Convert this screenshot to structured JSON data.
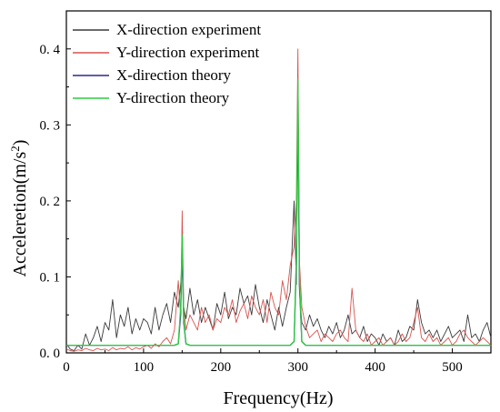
{
  "chart_data": {
    "type": "line",
    "title": "",
    "xlabel": "Frequency(Hz)",
    "ylabel": "Acceleretion(m/s",
    "ylabel_superscript": "2",
    "ylabel_suffix": ")",
    "xlim": [
      0,
      550
    ],
    "ylim": [
      0,
      0.45
    ],
    "x_ticks": [
      0,
      100,
      200,
      300,
      400,
      500
    ],
    "y_ticks": [
      0,
      0.1,
      0.2,
      0.3,
      0.4
    ],
    "y_tick_labels": [
      "0. 0",
      "0. 1",
      "0. 2",
      "0. 3",
      "0. 4"
    ],
    "grid": false,
    "legend_position": "top-left",
    "series": [
      {
        "name": "X-direction experiment",
        "color": "#3a3a3a",
        "x": [
          0,
          5,
          10,
          15,
          20,
          25,
          30,
          35,
          40,
          45,
          50,
          55,
          60,
          65,
          70,
          75,
          80,
          85,
          90,
          95,
          100,
          105,
          110,
          115,
          120,
          125,
          130,
          135,
          140,
          145,
          148,
          150,
          152,
          155,
          160,
          165,
          170,
          175,
          180,
          185,
          190,
          195,
          200,
          205,
          210,
          215,
          220,
          225,
          230,
          235,
          240,
          245,
          250,
          255,
          260,
          265,
          270,
          275,
          280,
          285,
          290,
          295,
          298,
          300,
          302,
          305,
          310,
          315,
          320,
          325,
          330,
          335,
          340,
          345,
          350,
          355,
          360,
          365,
          370,
          375,
          380,
          385,
          390,
          395,
          400,
          405,
          410,
          415,
          420,
          425,
          430,
          435,
          440,
          445,
          450,
          455,
          460,
          465,
          470,
          475,
          480,
          485,
          490,
          495,
          500,
          505,
          510,
          515,
          520,
          525,
          530,
          535,
          540,
          545,
          550
        ],
        "values": [
          0.012,
          0.005,
          0.003,
          0.01,
          0.005,
          0.025,
          0.01,
          0.02,
          0.035,
          0.015,
          0.04,
          0.03,
          0.07,
          0.02,
          0.05,
          0.035,
          0.06,
          0.025,
          0.045,
          0.03,
          0.045,
          0.04,
          0.025,
          0.06,
          0.03,
          0.05,
          0.065,
          0.04,
          0.08,
          0.06,
          0.09,
          0.12,
          0.06,
          0.045,
          0.085,
          0.05,
          0.07,
          0.04,
          0.06,
          0.045,
          0.03,
          0.065,
          0.05,
          0.08,
          0.045,
          0.06,
          0.05,
          0.085,
          0.065,
          0.075,
          0.05,
          0.09,
          0.06,
          0.04,
          0.07,
          0.05,
          0.03,
          0.06,
          0.035,
          0.06,
          0.08,
          0.2,
          0.09,
          0.33,
          0.08,
          0.04,
          0.03,
          0.05,
          0.035,
          0.045,
          0.03,
          0.02,
          0.035,
          0.025,
          0.04,
          0.02,
          0.03,
          0.05,
          0.025,
          0.03,
          0.02,
          0.035,
          0.015,
          0.025,
          0.02,
          0.01,
          0.025,
          0.015,
          0.02,
          0.01,
          0.03,
          0.015,
          0.02,
          0.035,
          0.03,
          0.07,
          0.04,
          0.025,
          0.03,
          0.02,
          0.03,
          0.015,
          0.025,
          0.035,
          0.02,
          0.025,
          0.03,
          0.015,
          0.05,
          0.02,
          0.025,
          0.015,
          0.03,
          0.04,
          0.02
        ]
      },
      {
        "name": "Y-direction experiment",
        "color": "#d9534f",
        "x": [
          0,
          5,
          10,
          15,
          20,
          25,
          30,
          35,
          40,
          45,
          50,
          55,
          60,
          65,
          70,
          75,
          80,
          85,
          90,
          95,
          100,
          105,
          110,
          115,
          120,
          125,
          130,
          135,
          140,
          145,
          148,
          150,
          152,
          155,
          160,
          165,
          170,
          175,
          180,
          185,
          190,
          195,
          200,
          205,
          210,
          215,
          220,
          225,
          230,
          235,
          240,
          245,
          250,
          255,
          260,
          265,
          270,
          275,
          280,
          285,
          290,
          295,
          298,
          300,
          302,
          305,
          310,
          315,
          320,
          325,
          330,
          335,
          340,
          345,
          350,
          355,
          360,
          365,
          370,
          375,
          380,
          385,
          390,
          395,
          400,
          405,
          410,
          415,
          420,
          425,
          430,
          435,
          440,
          445,
          450,
          455,
          460,
          465,
          470,
          475,
          480,
          485,
          490,
          495,
          500,
          505,
          510,
          515,
          520,
          525,
          530,
          535,
          540,
          545,
          550
        ],
        "values": [
          0.005,
          0.003,
          0.002,
          0.004,
          0.003,
          0.006,
          0.004,
          0.003,
          0.006,
          0.004,
          0.005,
          0.003,
          0.007,
          0.004,
          0.006,
          0.005,
          0.008,
          0.004,
          0.007,
          0.005,
          0.008,
          0.01,
          0.006,
          0.012,
          0.008,
          0.015,
          0.02,
          0.012,
          0.03,
          0.095,
          0.05,
          0.187,
          0.06,
          0.03,
          0.05,
          0.04,
          0.03,
          0.06,
          0.04,
          0.05,
          0.03,
          0.045,
          0.04,
          0.06,
          0.05,
          0.07,
          0.04,
          0.055,
          0.065,
          0.045,
          0.075,
          0.06,
          0.05,
          0.07,
          0.04,
          0.08,
          0.06,
          0.05,
          0.095,
          0.07,
          0.115,
          0.14,
          0.2,
          0.4,
          0.12,
          0.06,
          0.035,
          0.02,
          0.025,
          0.03,
          0.015,
          0.025,
          0.02,
          0.015,
          0.025,
          0.03,
          0.02,
          0.015,
          0.085,
          0.03,
          0.02,
          0.015,
          0.025,
          0.01,
          0.015,
          0.02,
          0.01,
          0.015,
          0.02,
          0.01,
          0.015,
          0.025,
          0.015,
          0.02,
          0.04,
          0.06,
          0.02,
          0.015,
          0.025,
          0.015,
          0.02,
          0.01,
          0.015,
          0.02,
          0.01,
          0.015,
          0.025,
          0.03,
          0.02,
          0.015,
          0.01,
          0.015,
          0.02,
          0.015,
          0.01
        ]
      },
      {
        "name": "X-direction theory",
        "color": "#2a2a8c",
        "x": [
          0,
          140,
          145,
          148,
          150,
          152,
          155,
          160,
          290,
          295,
          298,
          300,
          302,
          305,
          310,
          550
        ],
        "values": [
          0.01,
          0.01,
          0.012,
          0.05,
          0.14,
          0.04,
          0.012,
          0.01,
          0.01,
          0.015,
          0.12,
          0.33,
          0.09,
          0.015,
          0.01,
          0.01
        ]
      },
      {
        "name": "Y-direction theory",
        "color": "#2ecc40",
        "x": [
          0,
          140,
          145,
          148,
          150,
          152,
          155,
          160,
          290,
          295,
          298,
          300,
          302,
          305,
          310,
          550
        ],
        "values": [
          0.01,
          0.01,
          0.012,
          0.06,
          0.155,
          0.045,
          0.012,
          0.01,
          0.01,
          0.015,
          0.13,
          0.36,
          0.1,
          0.015,
          0.01,
          0.01
        ]
      }
    ]
  }
}
